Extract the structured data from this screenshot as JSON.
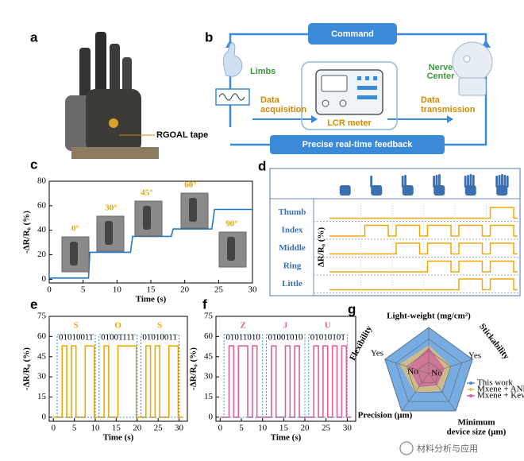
{
  "panel_labels": [
    "a",
    "b",
    "c",
    "d",
    "e",
    "f",
    "g"
  ],
  "panel_a": {
    "annotation": "RGOAL tape"
  },
  "panel_b": {
    "command": "Command",
    "limbs": "Limbs",
    "acquisition": [
      "Data",
      "acquisition"
    ],
    "meter": "LCR meter",
    "nerve_center": [
      "Nerve",
      "Center"
    ],
    "transmission": [
      "Data",
      "transmission"
    ],
    "feedback": "Precise real-time feedback"
  },
  "panel_d": {
    "y_label": "ΔR/R₀ (%)",
    "rows": [
      {
        "label": "Thumb",
        "states": [
          0,
          0,
          0,
          0,
          0,
          1
        ]
      },
      {
        "label": "Index",
        "states": [
          0,
          1,
          1,
          1,
          1,
          1
        ]
      },
      {
        "label": "Middle",
        "states": [
          0,
          0,
          1,
          1,
          1,
          1
        ]
      },
      {
        "label": "Ring",
        "states": [
          0,
          0,
          0,
          1,
          1,
          1
        ]
      },
      {
        "label": "Little",
        "states": [
          0,
          0,
          0,
          0,
          1,
          1
        ]
      }
    ]
  },
  "chart_data": [
    {
      "type": "line",
      "x_label": "Time (s)",
      "y_label": "-ΔR/R₀ (%)",
      "x": [
        0,
        5.8,
        6.0,
        12,
        12.3,
        18,
        18.3,
        24,
        24.4,
        30
      ],
      "series": [
        {
          "color": "#1f78c8",
          "values": [
            1,
            1,
            22,
            22,
            35,
            35,
            41,
            41,
            57,
            57
          ]
        }
      ],
      "annotations": [
        "0°",
        "30°",
        "45°",
        "60°",
        "90°"
      ],
      "xlim": [
        0,
        30
      ],
      "ylim": [
        -3,
        80
      ],
      "xticks": [
        0,
        5,
        10,
        15,
        20,
        25,
        30
      ],
      "yticks": [
        0,
        20,
        40,
        60,
        80
      ]
    },
    {
      "type": "line",
      "x_label": "Time (s)",
      "y_label": "-ΔR/R₀ (%)",
      "x": [
        0,
        2.1,
        2.1,
        3.2,
        3.2,
        4.3,
        4.3,
        5.4,
        5.4,
        7.6,
        7.6,
        9.8,
        9.8,
        12.1,
        12.1,
        13.2,
        13.2,
        15.4,
        15.4,
        19.8,
        19.8,
        22.1,
        22.1,
        23.2,
        23.2,
        24.3,
        24.3,
        25.4,
        25.4,
        27.6,
        27.6,
        29.8,
        29.8,
        31
      ],
      "series": [
        {
          "color": "#f0a800",
          "values": [
            0,
            0,
            53,
            53,
            0,
            0,
            53,
            53,
            0,
            0,
            53,
            53,
            0,
            0,
            53,
            53,
            0,
            0,
            53,
            53,
            0,
            0,
            53,
            53,
            0,
            0,
            53,
            53,
            0,
            0,
            53,
            53,
            0,
            0
          ]
        }
      ],
      "letters": [
        "S",
        "O",
        "S"
      ],
      "codes": [
        "01010011",
        "01001111",
        "01010011"
      ],
      "xlim": [
        -1,
        32
      ],
      "ylim": [
        -3,
        75
      ],
      "xticks": [
        0,
        5,
        10,
        15,
        20,
        25,
        30
      ],
      "yticks": [
        0,
        15,
        30,
        45,
        60,
        75
      ]
    },
    {
      "type": "line",
      "x_label": "Time (s)",
      "y_label": "-ΔR/R₀ (%)",
      "x": [
        0,
        2.1,
        2.1,
        3.2,
        3.2,
        4.3,
        4.3,
        6.5,
        6.5,
        7.6,
        7.6,
        8.7,
        8.7,
        12.1,
        12.1,
        13.2,
        13.2,
        15.4,
        15.4,
        16.5,
        16.5,
        17.6,
        17.6,
        18.7,
        18.7,
        22.1,
        22.1,
        23.2,
        23.2,
        24.3,
        24.3,
        25.4,
        25.4,
        26.5,
        26.5,
        27.6,
        27.6,
        28.7,
        28.7,
        29.8,
        29.8,
        31
      ],
      "series": [
        {
          "color": "#e0609a",
          "values": [
            0,
            0,
            53,
            53,
            0,
            0,
            53,
            53,
            0,
            0,
            53,
            53,
            0,
            0,
            53,
            53,
            0,
            0,
            53,
            53,
            0,
            0,
            53,
            53,
            0,
            0,
            53,
            53,
            0,
            0,
            53,
            53,
            0,
            0,
            53,
            53,
            0,
            0,
            53,
            53,
            0,
            0
          ]
        }
      ],
      "letters": [
        "Z",
        "J",
        "U"
      ],
      "codes": [
        "01011010",
        "01001010",
        "01010101"
      ],
      "xlim": [
        -1,
        32
      ],
      "ylim": [
        -3,
        75
      ],
      "xticks": [
        0,
        5,
        10,
        15,
        20,
        25,
        30
      ],
      "yticks": [
        0,
        15,
        30,
        45,
        60,
        75
      ]
    },
    {
      "type": "radar",
      "axes": [
        [
          "Light-weight (mg/cm²)"
        ],
        [
          "Stickability"
        ],
        [
          "Minimum",
          "device size (μm)"
        ],
        [
          "Precision (μm)"
        ],
        [
          "Flexibility"
        ]
      ],
      "rlim": [
        0,
        1
      ],
      "series": [
        {
          "name": "This work",
          "color": "#4a90d9",
          "values": [
            1,
            1,
            1,
            1,
            1
          ]
        },
        {
          "name": "Mxene + ANF",
          "color": "#e8c070",
          "values": [
            0.6,
            0.5,
            0.45,
            0.5,
            0.65
          ]
        },
        {
          "name": "Mxene + Kevlar",
          "color": "#d0609a",
          "values": [
            0.55,
            0.35,
            0.3,
            0.35,
            0.45
          ]
        }
      ],
      "annotations": [
        "Yes",
        "Yes",
        "No",
        "No"
      ]
    }
  ],
  "watermark": "材料分析与应用"
}
